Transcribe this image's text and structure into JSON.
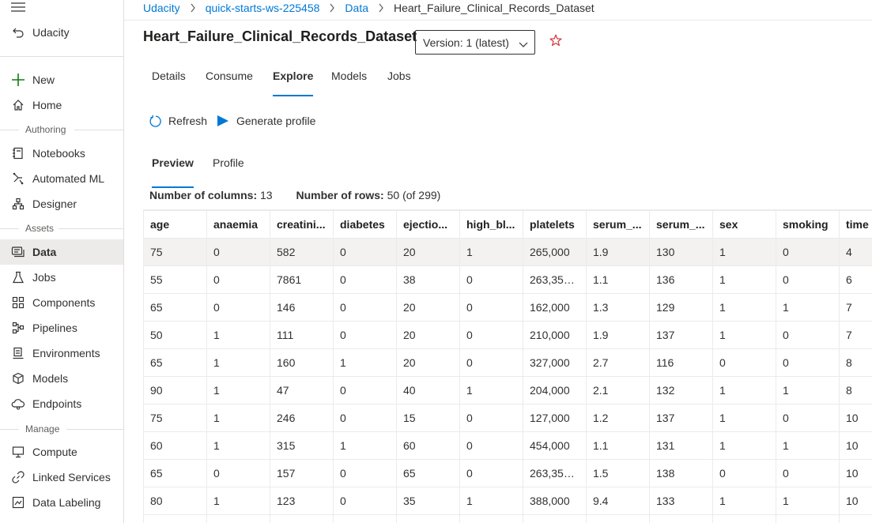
{
  "sidebar": {
    "workspace": "Udacity",
    "items": [
      {
        "label": "New",
        "icon": "plus-icon"
      },
      {
        "label": "Home",
        "icon": "home-icon"
      },
      {
        "label": "Notebooks",
        "icon": "notebook-icon"
      },
      {
        "label": "Automated ML",
        "icon": "automl-icon"
      },
      {
        "label": "Designer",
        "icon": "designer-icon"
      },
      {
        "label": "Data",
        "icon": "data-icon"
      },
      {
        "label": "Jobs",
        "icon": "flask-icon"
      },
      {
        "label": "Components",
        "icon": "components-icon"
      },
      {
        "label": "Pipelines",
        "icon": "pipelines-icon"
      },
      {
        "label": "Environments",
        "icon": "environments-icon"
      },
      {
        "label": "Models",
        "icon": "cube-icon"
      },
      {
        "label": "Endpoints",
        "icon": "cloud-icon"
      },
      {
        "label": "Compute",
        "icon": "monitor-icon"
      },
      {
        "label": "Linked Services",
        "icon": "link-icon"
      },
      {
        "label": "Data Labeling",
        "icon": "label-icon"
      }
    ],
    "sections": {
      "authoring": "Authoring",
      "assets": "Assets",
      "manage": "Manage"
    },
    "active": "Data"
  },
  "breadcrumb": [
    "Udacity",
    "quick-starts-ws-225458",
    "Data",
    "Heart_Failure_Clinical_Records_Dataset"
  ],
  "title": "Heart_Failure_Clinical_Records_Dataset",
  "version": "Version: 1 (latest)",
  "tabs": [
    "Details",
    "Consume",
    "Explore",
    "Models",
    "Jobs"
  ],
  "active_tab": "Explore",
  "commands": {
    "refresh": "Refresh",
    "generate_profile": "Generate profile"
  },
  "subtabs": [
    "Preview",
    "Profile"
  ],
  "active_subtab": "Preview",
  "info": {
    "columns_label": "Number of columns:",
    "columns_value": "13",
    "rows_label": "Number of rows:",
    "rows_value": "50 (of 299)"
  },
  "table": {
    "headers": [
      "age",
      "anaemia",
      "creatini...",
      "diabetes",
      "ejectio...",
      "high_bl...",
      "platelets",
      "serum_...",
      "serum_...",
      "sex",
      "smoking",
      "time"
    ],
    "rows": [
      [
        "75",
        "0",
        "582",
        "0",
        "20",
        "1",
        "265,000",
        "1.9",
        "130",
        "1",
        "0",
        "4"
      ],
      [
        "55",
        "0",
        "7861",
        "0",
        "38",
        "0",
        "263,358....",
        "1.1",
        "136",
        "1",
        "0",
        "6"
      ],
      [
        "65",
        "0",
        "146",
        "0",
        "20",
        "0",
        "162,000",
        "1.3",
        "129",
        "1",
        "1",
        "7"
      ],
      [
        "50",
        "1",
        "111",
        "0",
        "20",
        "0",
        "210,000",
        "1.9",
        "137",
        "1",
        "0",
        "7"
      ],
      [
        "65",
        "1",
        "160",
        "1",
        "20",
        "0",
        "327,000",
        "2.7",
        "116",
        "0",
        "0",
        "8"
      ],
      [
        "90",
        "1",
        "47",
        "0",
        "40",
        "1",
        "204,000",
        "2.1",
        "132",
        "1",
        "1",
        "8"
      ],
      [
        "75",
        "1",
        "246",
        "0",
        "15",
        "0",
        "127,000",
        "1.2",
        "137",
        "1",
        "0",
        "10"
      ],
      [
        "60",
        "1",
        "315",
        "1",
        "60",
        "0",
        "454,000",
        "1.1",
        "131",
        "1",
        "1",
        "10"
      ],
      [
        "65",
        "0",
        "157",
        "0",
        "65",
        "0",
        "263,358....",
        "1.5",
        "138",
        "0",
        "0",
        "10"
      ],
      [
        "80",
        "1",
        "123",
        "0",
        "35",
        "1",
        "388,000",
        "9.4",
        "133",
        "1",
        "1",
        "10"
      ],
      [
        "",
        "",
        "",
        "",
        "",
        "",
        "",
        "",
        "",
        "",
        "",
        ""
      ]
    ]
  },
  "colors": {
    "accent": "#0078d4",
    "star": "#d13438"
  }
}
